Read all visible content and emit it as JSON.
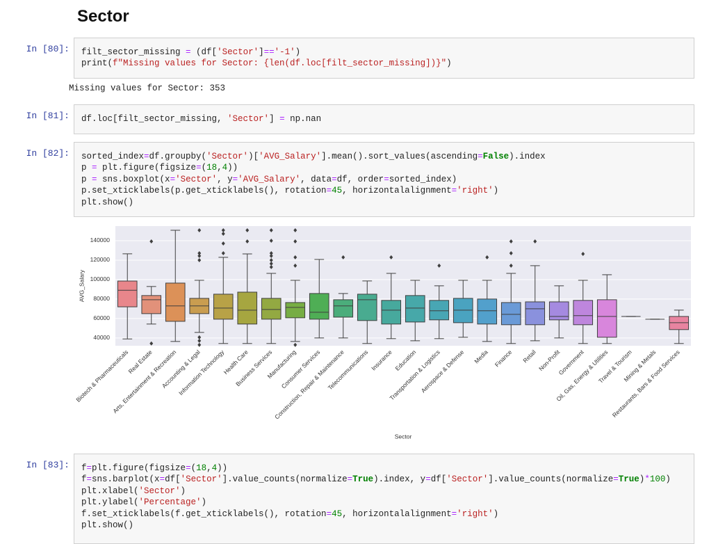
{
  "heading": "Sector",
  "cells": [
    {
      "prompt": "In [80]:",
      "code": [
        "filt_sector_missing = (df['Sector']=='-1')",
        "print(f\"Missing values for Sector: {len(df.loc[filt_sector_missing])}\")"
      ],
      "output": "Missing values for Sector: 353"
    },
    {
      "prompt": "In [81]:",
      "code": [
        "df.loc[filt_sector_missing, 'Sector'] = np.nan"
      ]
    },
    {
      "prompt": "In [82]:",
      "code": [
        "sorted_index=df.groupby('Sector')['AVG_Salary'].mean().sort_values(ascending=False).index",
        "p = plt.figure(figsize=(18,4))",
        "p = sns.boxplot(x='Sector', y='AVG_Salary', data=df, order=sorted_index)",
        "p.set_xticklabels(p.get_xticklabels(), rotation=45, horizontalalignment='right')",
        "plt.show()"
      ]
    },
    {
      "prompt": "In [83]:",
      "code": [
        "f=plt.figure(figsize=(18,4))",
        "f=sns.barplot(x=df['Sector'].value_counts(normalize=True).index, y=df['Sector'].value_counts(normalize=True)*100)",
        "plt.xlabel('Sector')",
        "plt.ylabel('Percentage')",
        "f.set_xticklabels(f.get_xticklabels(), rotation=45, horizontalalignment='right')",
        "plt.show()"
      ]
    }
  ],
  "chart_data": {
    "type": "boxplot",
    "x_label": "Sector",
    "y_label": "AVG_Salary",
    "categories": [
      "Biotech & Pharmaceuticals",
      "Real Estate",
      "Arts, Entertainment & Recreation",
      "Accounting & Legal",
      "Information Technology",
      "Health Care",
      "Business Services",
      "Manufacturing",
      "Consumer Services",
      "Construction, Repair & Maintenance",
      "Telecommunications",
      "Insurance",
      "Education",
      "Transportation & Logistics",
      "Aerospace & Defense",
      "Media",
      "Finance",
      "Retail",
      "Non-Profit",
      "Government",
      "Oil, Gas, Energy & Utilities",
      "Travel & Tourism",
      "Mining & Metals",
      "Restaurants, Bars & Food Services"
    ],
    "colors": [
      "#e8868b",
      "#e2917a",
      "#dc9158",
      "#c99d50",
      "#b8a247",
      "#a6a640",
      "#93a942",
      "#77ad44",
      "#4fae55",
      "#4bad7b",
      "#49ab90",
      "#47a99d",
      "#47a8a9",
      "#48a6b4",
      "#4aa3c0",
      "#52a0cc",
      "#6a9ad7",
      "#8a91dd",
      "#a58ae0",
      "#be86dd",
      "#d886dc",
      "#e284c4",
      "#e486b2",
      "#e884a0"
    ],
    "boxes": [
      {
        "low": 39000,
        "q1": 72000,
        "median": 89000,
        "q3": 98500,
        "high": 126500,
        "outliers": []
      },
      {
        "low": 54300,
        "q1": 65000,
        "median": 79300,
        "q3": 83600,
        "high": 92900,
        "outliers": [
          139300,
          34300
        ]
      },
      {
        "low": 36400,
        "q1": 57100,
        "median": 72900,
        "q3": 96400,
        "high": 150700,
        "outliers": []
      },
      {
        "low": 45700,
        "q1": 65000,
        "median": 72900,
        "q3": 80700,
        "high": 99300,
        "outliers": [
          150700,
          127100,
          124300,
          120000,
          40700,
          37100,
          32900
        ]
      },
      {
        "low": 34300,
        "q1": 59300,
        "median": 70700,
        "q3": 85000,
        "high": 122900,
        "outliers": [
          150700,
          147100,
          137100,
          127100
        ]
      },
      {
        "low": 34300,
        "q1": 54300,
        "median": 68600,
        "q3": 87100,
        "high": 126400,
        "outliers": [
          150700,
          139300
        ]
      },
      {
        "low": 34300,
        "q1": 59300,
        "median": 69300,
        "q3": 80700,
        "high": 106400,
        "outliers": [
          150700,
          140000,
          127100,
          124300,
          120000,
          116400,
          112900
        ]
      },
      {
        "low": 36400,
        "q1": 60700,
        "median": 71400,
        "q3": 76400,
        "high": 99300,
        "outliers": [
          150700,
          139300,
          122900,
          114300,
          32900
        ]
      },
      {
        "low": 40000,
        "q1": 59300,
        "median": 66400,
        "q3": 85700,
        "high": 120700,
        "outliers": []
      },
      {
        "low": 40000,
        "q1": 61400,
        "median": 72900,
        "q3": 79300,
        "high": 85700,
        "outliers": [
          122900
        ]
      },
      {
        "low": 34300,
        "q1": 57900,
        "median": 79300,
        "q3": 85000,
        "high": 98600,
        "outliers": []
      },
      {
        "low": 39300,
        "q1": 54300,
        "median": 68600,
        "q3": 78600,
        "high": 106400,
        "outliers": [
          122900
        ]
      },
      {
        "low": 37100,
        "q1": 56400,
        "median": 70700,
        "q3": 83600,
        "high": 99300,
        "outliers": []
      },
      {
        "low": 39300,
        "q1": 58600,
        "median": 67900,
        "q3": 78600,
        "high": 93600,
        "outliers": [
          114300
        ]
      },
      {
        "low": 40700,
        "q1": 55700,
        "median": 68600,
        "q3": 80700,
        "high": 99300,
        "outliers": []
      },
      {
        "low": 36400,
        "q1": 54300,
        "median": 67900,
        "q3": 80000,
        "high": 99300,
        "outliers": [
          122900
        ]
      },
      {
        "low": 34300,
        "q1": 53600,
        "median": 64300,
        "q3": 76400,
        "high": 106400,
        "outliers": [
          139300,
          127100,
          114300
        ]
      },
      {
        "low": 37100,
        "q1": 53600,
        "median": 70000,
        "q3": 77100,
        "high": 114300,
        "outliers": [
          139300
        ]
      },
      {
        "low": 40000,
        "q1": 58600,
        "median": 62100,
        "q3": 77100,
        "high": 93600,
        "outliers": []
      },
      {
        "low": 34300,
        "q1": 53600,
        "median": 62900,
        "q3": 78600,
        "high": 99300,
        "outliers": [
          126400
        ]
      },
      {
        "low": 34300,
        "q1": 40700,
        "median": 62100,
        "q3": 79300,
        "high": 105000,
        "outliers": []
      },
      {
        "low": 62100,
        "q1": 62100,
        "median": 62100,
        "q3": 62100,
        "high": 62100,
        "outliers": []
      },
      {
        "low": 59300,
        "q1": 59300,
        "median": 59300,
        "q3": 59300,
        "high": 59300,
        "outliers": []
      },
      {
        "low": 34300,
        "q1": 48600,
        "median": 55700,
        "q3": 62100,
        "high": 68600,
        "outliers": []
      }
    ],
    "ylim": [
      32000,
      155000
    ],
    "yticks": [
      40000,
      60000,
      80000,
      100000,
      120000,
      140000
    ],
    "grid": true
  }
}
